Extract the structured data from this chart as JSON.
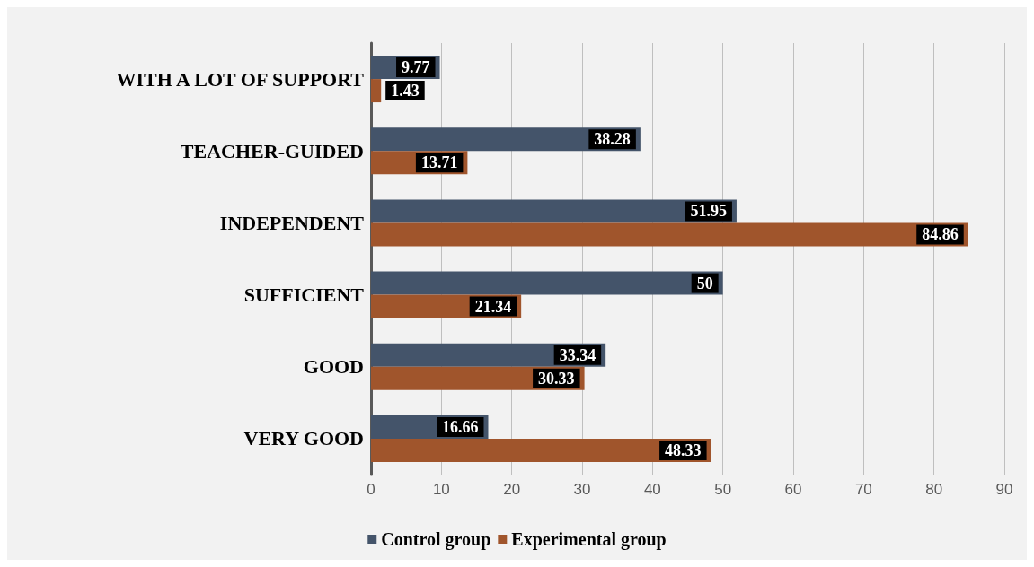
{
  "chart_data": {
    "type": "bar",
    "orientation": "horizontal",
    "categories": [
      "WITH A LOT OF SUPPORT",
      "TEACHER-GUIDED",
      "INDEPENDENT",
      "SUFFICIENT",
      "GOOD",
      "VERY GOOD"
    ],
    "series": [
      {
        "name": "Control group",
        "color": "#44546a",
        "values": [
          9.77,
          38.28,
          51.95,
          50,
          33.34,
          16.66
        ]
      },
      {
        "name": "Experimental group",
        "color": "#a0552c",
        "values": [
          1.43,
          13.71,
          84.86,
          21.34,
          30.33,
          48.33
        ]
      }
    ],
    "xlim": [
      0,
      90
    ],
    "xticks": [
      0,
      10,
      20,
      30,
      40,
      50,
      60,
      70,
      80,
      90
    ],
    "grid": "x",
    "legend": "bottom",
    "data_labels": true
  }
}
